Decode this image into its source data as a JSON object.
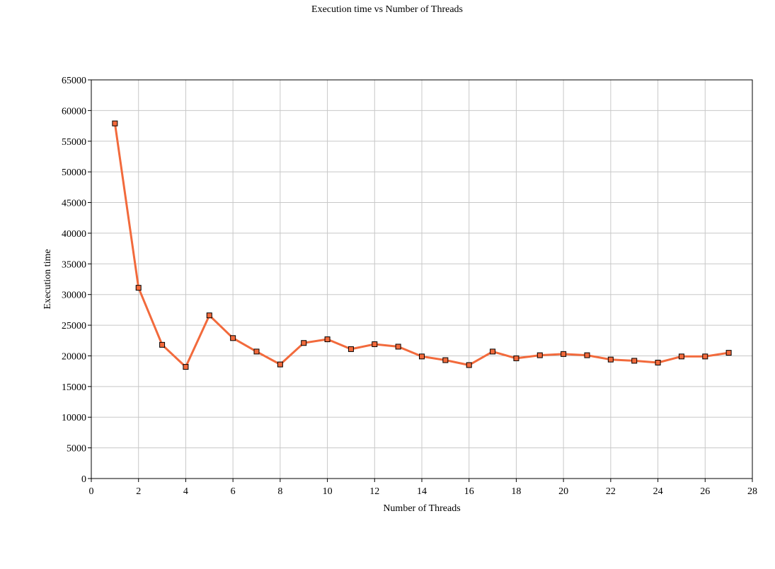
{
  "chart_data": {
    "type": "line",
    "title": "Execution time vs Number of Threads",
    "xlabel": "Number of Threads",
    "ylabel": "Execution time",
    "xlim": [
      0,
      28
    ],
    "ylim": [
      0,
      65000
    ],
    "x_ticks": [
      0,
      2,
      4,
      6,
      8,
      10,
      12,
      14,
      16,
      18,
      20,
      22,
      24,
      26,
      28
    ],
    "y_ticks": [
      0,
      5000,
      10000,
      15000,
      20000,
      25000,
      30000,
      35000,
      40000,
      45000,
      50000,
      55000,
      60000,
      65000
    ],
    "grid": true,
    "legend": "none",
    "series": [
      {
        "color": "#f26a3c",
        "marker": "square",
        "x": [
          1,
          2,
          3,
          4,
          5,
          6,
          7,
          8,
          9,
          10,
          11,
          12,
          13,
          14,
          15,
          16,
          17,
          18,
          19,
          20,
          21,
          22,
          23,
          24,
          25,
          26,
          27
        ],
        "y": [
          57900,
          31100,
          21800,
          18200,
          26600,
          22900,
          20700,
          18600,
          22100,
          22700,
          21100,
          21900,
          21500,
          19900,
          19300,
          18500,
          20700,
          19600,
          20100,
          20300,
          20100,
          19400,
          19200,
          18900,
          19900,
          19900,
          20500
        ]
      }
    ]
  }
}
